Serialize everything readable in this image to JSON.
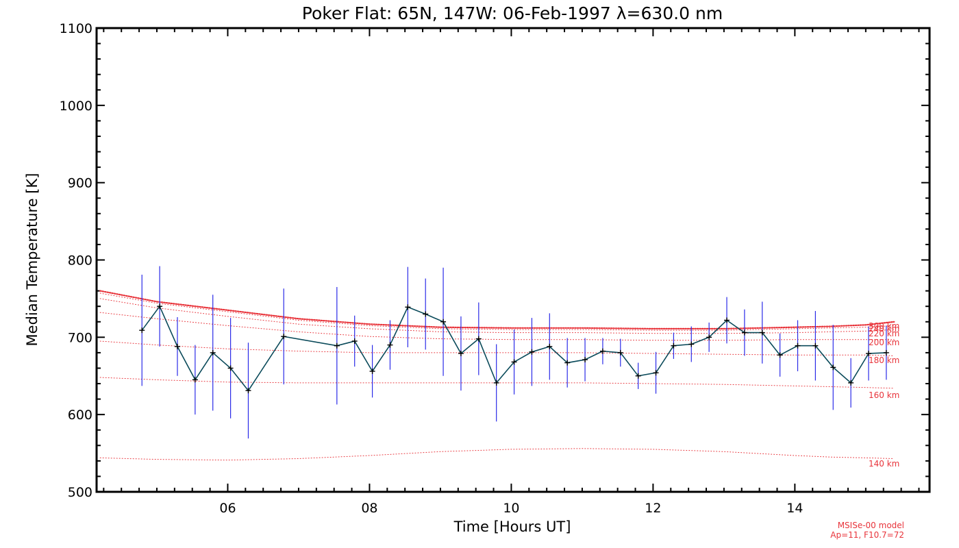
{
  "chart_data": {
    "type": "line",
    "title": "Poker Flat: 65N, 147W: 06-Feb-1997 λ=630.0 nm",
    "xlabel": "Time [Hours UT]",
    "ylabel": "Median Temperature [K]",
    "xlim": [
      4.15,
      15.9
    ],
    "ylim": [
      500,
      1100
    ],
    "x_ticks": [
      6,
      8,
      10,
      12,
      14
    ],
    "x_tick_labels": [
      "06",
      "08",
      "10",
      "12",
      "14"
    ],
    "y_ticks": [
      500,
      600,
      700,
      800,
      900,
      1000,
      1100
    ],
    "y_tick_labels": [
      "500",
      "600",
      "700",
      "800",
      "900",
      "1000",
      "1100"
    ],
    "colors": {
      "measured_line": "#0a4a5a",
      "error_bar": "#2a2ae8",
      "model": "#e8333a",
      "axis": "#000000"
    },
    "measured": {
      "x": [
        4.79,
        5.04,
        5.29,
        5.54,
        5.79,
        6.04,
        6.29,
        6.79,
        7.54,
        7.79,
        8.04,
        8.29,
        8.54,
        8.79,
        9.04,
        9.29,
        9.54,
        9.79,
        10.04,
        10.29,
        10.54,
        10.79,
        11.04,
        11.29,
        11.54,
        11.79,
        12.04,
        12.29,
        12.54,
        12.79,
        13.04,
        13.29,
        13.54,
        13.79,
        14.04,
        14.29,
        14.54,
        14.79,
        15.04,
        15.29
      ],
      "y": [
        709,
        740,
        688,
        645,
        680,
        660,
        631,
        701,
        689,
        695,
        656,
        690,
        739,
        730,
        720,
        679,
        698,
        641,
        668,
        681,
        688,
        667,
        671,
        682,
        680,
        650,
        654,
        689,
        691,
        700,
        722,
        706,
        706,
        677,
        689,
        689,
        661,
        641,
        679,
        680
      ],
      "y_err": [
        72,
        52,
        38,
        45,
        75,
        65,
        62,
        62,
        76,
        33,
        34,
        32,
        52,
        46,
        70,
        48,
        47,
        50,
        42,
        44,
        43,
        32,
        28,
        17,
        18,
        17,
        27,
        17,
        23,
        19,
        30,
        30,
        40,
        28,
        33,
        45,
        55,
        32,
        35,
        35
      ]
    },
    "model_series": [
      {
        "name": "300 km",
        "x": [
          4.2,
          5.0,
          6.0,
          7.0,
          8.0,
          9.0,
          10.0,
          11.0,
          12.0,
          13.0,
          14.0,
          14.5,
          15.0,
          15.4
        ],
        "y": [
          760,
          746,
          735,
          724,
          717,
          713,
          712,
          712,
          711,
          711,
          713,
          714,
          716,
          720
        ]
      },
      {
        "name": "240 km",
        "x": [
          4.2,
          5.0,
          6.0,
          7.0,
          8.0,
          9.0,
          10.0,
          11.0,
          12.0,
          13.0,
          14.0,
          14.5,
          15.0,
          15.4
        ],
        "y": [
          757,
          744,
          733,
          722,
          715,
          711,
          710,
          710,
          709,
          709,
          711,
          712,
          713,
          715
        ]
      },
      {
        "name": "220 km",
        "x": [
          4.2,
          5.0,
          6.0,
          7.0,
          8.0,
          9.0,
          10.0,
          11.0,
          12.0,
          13.0,
          14.0,
          14.5,
          15.0,
          15.4
        ],
        "y": [
          750,
          738,
          727,
          717,
          711,
          707,
          706,
          706,
          705,
          705,
          706,
          707,
          708,
          710
        ]
      },
      {
        "name": "200 km",
        "x": [
          4.2,
          5.0,
          6.0,
          7.0,
          8.0,
          9.0,
          10.0,
          11.0,
          12.0,
          13.0,
          14.0,
          14.5,
          15.0,
          15.4
        ],
        "y": [
          732,
          724,
          715,
          707,
          701,
          698,
          697,
          697,
          696,
          696,
          697,
          697,
          697,
          697
        ]
      },
      {
        "name": "180 km",
        "x": [
          4.2,
          5.0,
          6.0,
          7.0,
          8.0,
          9.0,
          10.0,
          11.0,
          12.0,
          13.0,
          14.0,
          14.5,
          15.0,
          15.4
        ],
        "y": [
          695,
          690,
          685,
          682,
          680,
          680,
          680,
          680,
          679,
          678,
          677,
          677,
          677,
          676
        ]
      },
      {
        "name": "160 km",
        "x": [
          4.2,
          5.0,
          6.0,
          7.0,
          8.0,
          9.0,
          10.0,
          11.0,
          12.0,
          13.0,
          14.0,
          14.5,
          15.0,
          15.4
        ],
        "y": [
          648,
          645,
          642,
          641,
          641,
          641,
          641,
          641,
          640,
          639,
          637,
          636,
          635,
          634
        ]
      },
      {
        "name": "140 km",
        "x": [
          4.2,
          5.0,
          6.0,
          7.0,
          8.0,
          9.0,
          10.0,
          11.0,
          12.0,
          13.0,
          14.0,
          14.5,
          15.0,
          15.4
        ],
        "y": [
          544,
          542,
          541,
          543,
          547,
          552,
          555,
          556,
          555,
          552,
          547,
          545,
          544,
          543
        ]
      }
    ],
    "annotations": [
      "MSISe-00 model",
      "Ap=11, F10.7=72"
    ]
  }
}
